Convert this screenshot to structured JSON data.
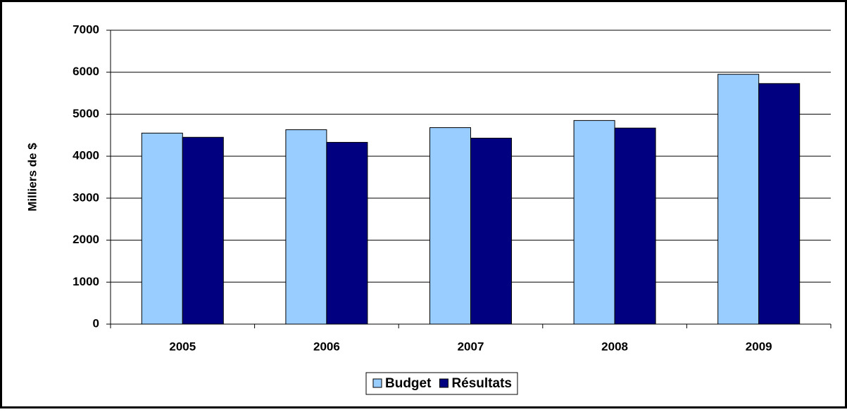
{
  "chart_data": {
    "type": "bar",
    "y_label": "Milliers de $",
    "categories": [
      "2005",
      "2006",
      "2007",
      "2008",
      "2009"
    ],
    "series": [
      {
        "name": "Budget",
        "color": "#99ccff",
        "values": [
          4550,
          4630,
          4680,
          4850,
          5950
        ]
      },
      {
        "name": "Résultats",
        "color": "#000080",
        "values": [
          4450,
          4330,
          4430,
          4670,
          5730
        ]
      }
    ],
    "ylim": [
      0,
      7000
    ],
    "yticks": [
      0,
      1000,
      2000,
      3000,
      4000,
      5000,
      6000,
      7000
    ],
    "grid": true,
    "legend": "bottom"
  }
}
